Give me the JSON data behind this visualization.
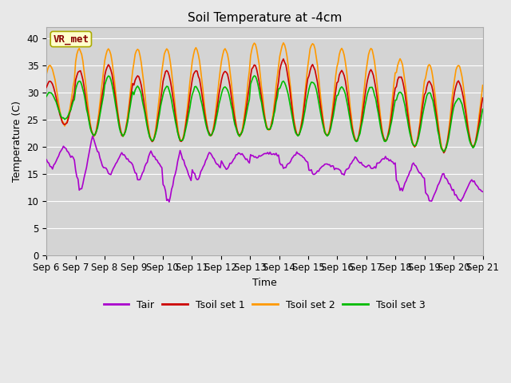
{
  "title": "Soil Temperature at -4cm",
  "xlabel": "Time",
  "ylabel": "Temperature (C)",
  "ylim": [
    0,
    42
  ],
  "yticks": [
    0,
    5,
    10,
    15,
    20,
    25,
    30,
    35,
    40
  ],
  "n_days": 15,
  "colors": {
    "Tair": "#aa00cc",
    "Tsoil set 1": "#cc0000",
    "Tsoil set 2": "#ff9900",
    "Tsoil set 3": "#00bb00"
  },
  "background_color": "#e8e8e8",
  "plot_bg_color": "#d4d4d4",
  "annotation_text": "VR_met",
  "annotation_facecolor": "#ffffcc",
  "annotation_edgecolor": "#aaaa00",
  "title_fontsize": 11,
  "axis_label_fontsize": 9,
  "tick_fontsize": 8.5
}
